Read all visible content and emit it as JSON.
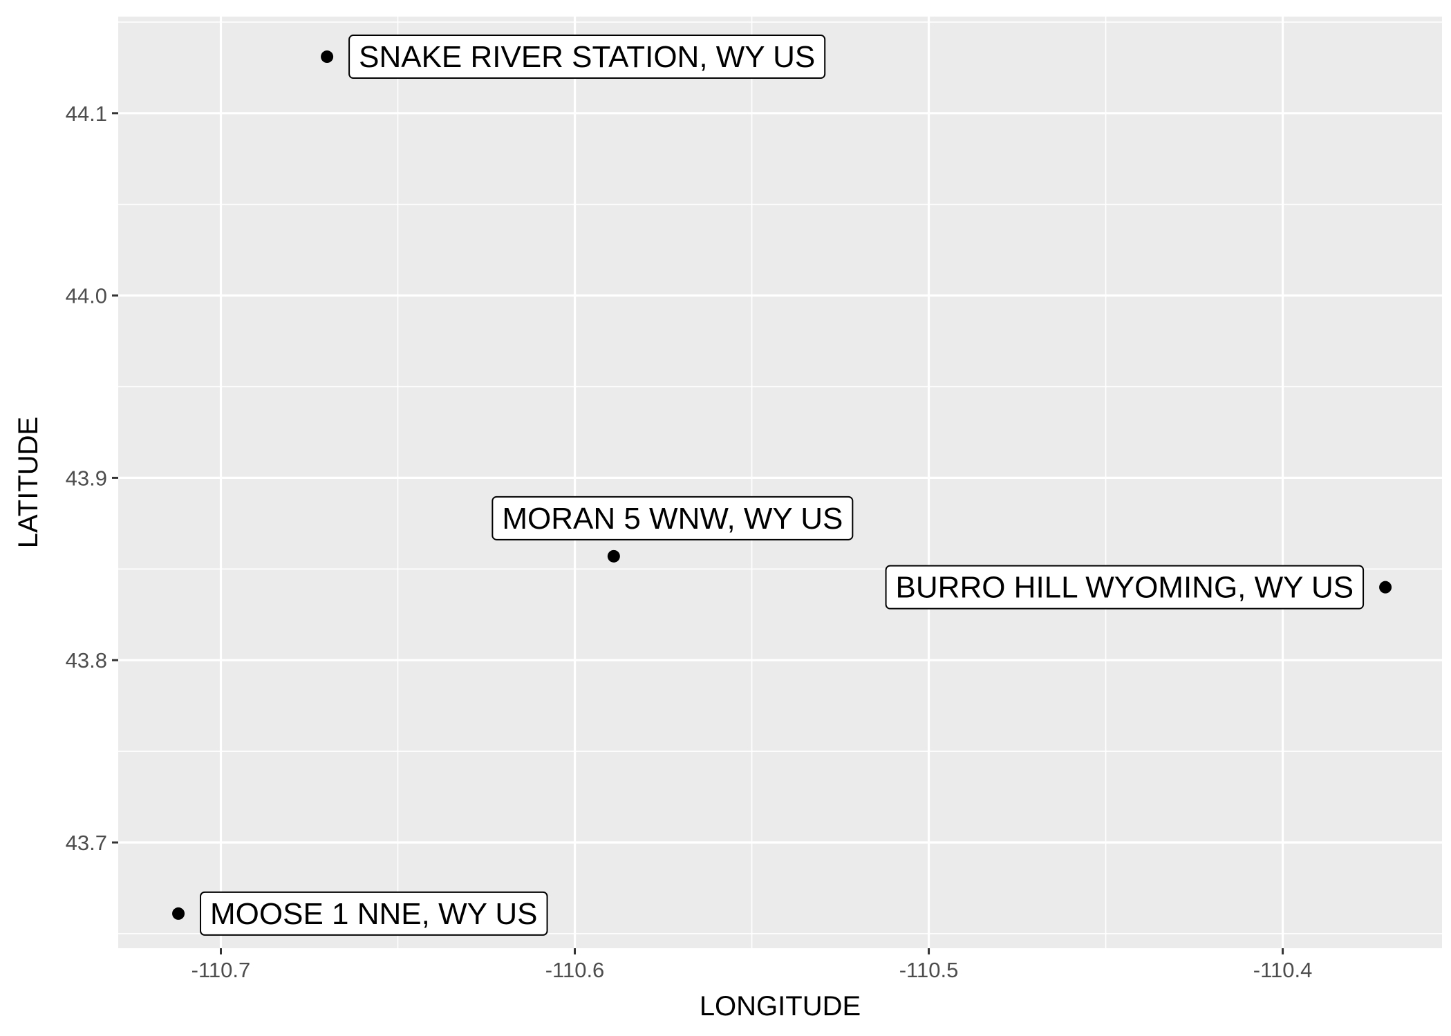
{
  "chart_data": {
    "type": "scatter",
    "title": "",
    "xlabel": "LONGITUDE",
    "ylabel": "LATITUDE",
    "xlim": [
      -110.729,
      -110.355
    ],
    "ylim": [
      43.642,
      44.153
    ],
    "x_ticks": [
      {
        "value": -110.7,
        "label": "-110.7"
      },
      {
        "value": -110.6,
        "label": "-110.6"
      },
      {
        "value": -110.5,
        "label": "-110.5"
      },
      {
        "value": -110.4,
        "label": "-110.4"
      }
    ],
    "y_ticks": [
      {
        "value": 43.7,
        "label": "43.7"
      },
      {
        "value": 43.8,
        "label": "43.8"
      },
      {
        "value": 43.9,
        "label": "43.9"
      },
      {
        "value": 44.0,
        "label": "44.0"
      },
      {
        "value": 44.1,
        "label": "44.1"
      }
    ],
    "grid": true,
    "panel_background": "#ebebeb",
    "grid_color": "#ffffff",
    "point_color": "#000000",
    "points": [
      {
        "x": -110.67,
        "y": 44.131,
        "label": "SNAKE RIVER STATION, WY US",
        "label_side": "right"
      },
      {
        "x": -110.589,
        "y": 43.857,
        "label": "MORAN 5 WNW, WY US",
        "label_side": "above"
      },
      {
        "x": -110.371,
        "y": 43.84,
        "label": "BURRO HILL WYOMING, WY US",
        "label_side": "left"
      },
      {
        "x": -110.712,
        "y": 43.661,
        "label": "MOOSE 1 NNE, WY US",
        "label_side": "right"
      }
    ]
  }
}
